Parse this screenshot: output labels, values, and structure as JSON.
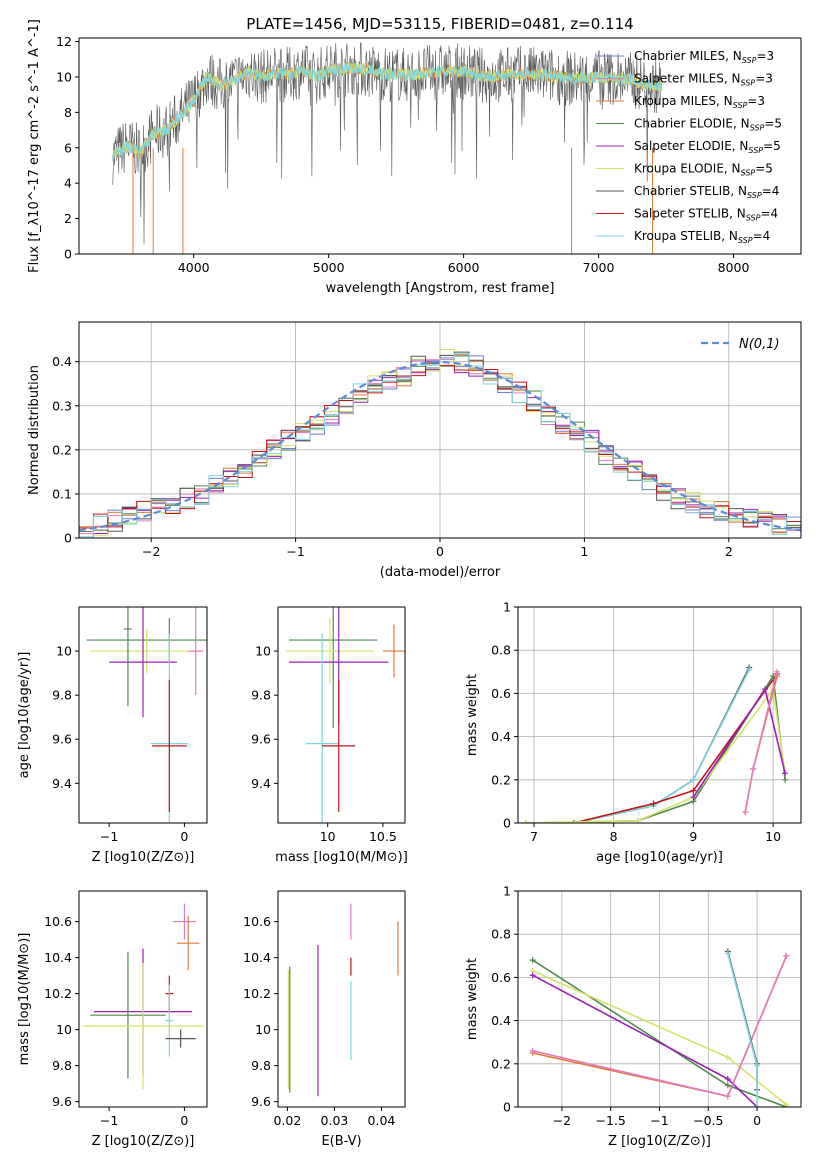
{
  "figure_title": "PLATE=1456, MJD=53115, FIBERID=0481, z=0.114",
  "colors": {
    "chabrier_miles": "#6a7fd4",
    "salpeter_miles": "#e27ac0",
    "kroupa_miles": "#e07b39",
    "chabrier_elodie": "#4f8a4f",
    "salpeter_elodie": "#9b1fb5",
    "kroupa_elodie": "#d4e36a",
    "chabrier_stelib": "#555555",
    "salpeter_stelib": "#c0141a",
    "kroupa_stelib": "#7fd6dc",
    "normal": "#5b8bd6"
  },
  "chart_data": [
    {
      "id": "spectrum",
      "type": "line",
      "xlabel": "wavelength [Angstrom, rest frame]",
      "ylabel": "Flux [f_λ10^-17 erg cm^-2 s^-1 A^-1]",
      "xlim": [
        3150,
        8500
      ],
      "ylim": [
        0,
        12.2
      ],
      "xticks": [
        4000,
        5000,
        6000,
        7000,
        8000
      ],
      "yticks": [
        0,
        2,
        4,
        6,
        8,
        10,
        12
      ],
      "x": [
        3400,
        3500,
        3550,
        3600,
        3700,
        3800,
        3900,
        4000,
        4100,
        4200,
        4300,
        4400,
        4500,
        4600,
        4700,
        4800,
        4900,
        5000,
        5200,
        5400,
        5600,
        5800,
        6000,
        6200,
        6400,
        6600,
        6800,
        7000,
        7200,
        7400
      ],
      "y": [
        5.5,
        6.1,
        6.0,
        5.7,
        6.8,
        7.0,
        7.8,
        8.7,
        10.0,
        9.5,
        9.8,
        10.3,
        10.0,
        10.2,
        10.1,
        10.4,
        10.0,
        10.4,
        10.5,
        10.2,
        10.1,
        10.3,
        10.3,
        10.0,
        10.2,
        10.1,
        9.9,
        10.0,
        9.9,
        9.5
      ],
      "data_x_max": 7470,
      "legend_position": "upper-right",
      "legend": [
        {
          "label": "Chabrier MILES, N",
          "sub": "SSP",
          "tail": "=3",
          "color_key": "chabrier_miles"
        },
        {
          "label": "Salpeter MILES, N",
          "sub": "SSP",
          "tail": "=3",
          "color_key": "salpeter_miles"
        },
        {
          "label": "Kroupa MILES, N",
          "sub": "SSP",
          "tail": "=3",
          "color_key": "kroupa_miles"
        },
        {
          "label": "Chabrier ELODIE, N",
          "sub": "SSP",
          "tail": "=5",
          "color_key": "chabrier_elodie"
        },
        {
          "label": "Salpeter ELODIE, N",
          "sub": "SSP",
          "tail": "=5",
          "color_key": "salpeter_elodie"
        },
        {
          "label": "Kroupa ELODIE, N",
          "sub": "SSP",
          "tail": "=5",
          "color_key": "kroupa_elodie"
        },
        {
          "label": "Chabrier STELIB, N",
          "sub": "SSP",
          "tail": "=4",
          "color_key": "chabrier_stelib"
        },
        {
          "label": "Salpeter STELIB, N",
          "sub": "SSP",
          "tail": "=4",
          "color_key": "salpeter_stelib"
        },
        {
          "label": "Kroupa STELIB, N",
          "sub": "SSP",
          "tail": "=4",
          "color_key": "kroupa_stelib"
        }
      ],
      "grid": false
    },
    {
      "id": "residuals",
      "type": "step-histogram",
      "xlabel": "(data-model)/error",
      "ylabel": "Normed distribution",
      "xlim": [
        -2.5,
        2.5
      ],
      "ylim": [
        0,
        0.49
      ],
      "xticks": [
        -2,
        -1,
        0,
        1,
        2
      ],
      "yticks": [
        0.0,
        0.1,
        0.2,
        0.3,
        0.4
      ],
      "bin_width": 0.1,
      "bins_start": -2.5,
      "histogram": [
        0.02,
        0.03,
        0.04,
        0.05,
        0.06,
        0.07,
        0.08,
        0.09,
        0.1,
        0.12,
        0.14,
        0.16,
        0.18,
        0.2,
        0.22,
        0.24,
        0.26,
        0.28,
        0.3,
        0.33,
        0.35,
        0.36,
        0.37,
        0.39,
        0.4,
        0.41,
        0.4,
        0.39,
        0.37,
        0.35,
        0.33,
        0.31,
        0.28,
        0.26,
        0.24,
        0.22,
        0.19,
        0.17,
        0.15,
        0.13,
        0.11,
        0.09,
        0.08,
        0.07,
        0.06,
        0.05,
        0.04,
        0.04,
        0.03,
        0.03
      ],
      "normal_label": "N(0,1)",
      "legend_position": "upper-right",
      "grid": true
    },
    {
      "id": "age_vs_Z",
      "type": "errorbar",
      "xlabel": "Z [log10(Z/Z⊙)]",
      "ylabel": "age  [log10(age/yr)]",
      "xlim": [
        -1.4,
        0.3
      ],
      "ylim": [
        9.22,
        10.2
      ],
      "xticks": [
        -1,
        0
      ],
      "yticks": [
        9.4,
        9.6,
        9.8,
        10.0
      ],
      "points": [
        {
          "x": -0.2,
          "y": 10.05,
          "xerr": 1.1,
          "yerr": 0.1,
          "color_key": "chabrier_elodie"
        },
        {
          "x": -0.5,
          "y": 10.0,
          "xerr": 0.75,
          "yerr": 0.1,
          "color_key": "kroupa_elodie"
        },
        {
          "x": -0.55,
          "y": 9.95,
          "xerr": 0.45,
          "yerr": 0.25,
          "color_key": "salpeter_elodie"
        },
        {
          "x": -0.75,
          "y": 10.1,
          "xerr": 0.05,
          "yerr": 0.35,
          "color_key": "chabrier_elodie"
        },
        {
          "x": 0.15,
          "y": 10.0,
          "xerr": 0.1,
          "yerr": 0.2,
          "color_key": "salpeter_miles"
        },
        {
          "x": -0.2,
          "y": 9.58,
          "xerr": 0.25,
          "yerr": 0.5,
          "color_key": "kroupa_stelib"
        },
        {
          "x": -0.2,
          "y": 9.57,
          "xerr": 0.23,
          "yerr": 0.3,
          "color_key": "salpeter_stelib"
        }
      ]
    },
    {
      "id": "age_vs_mass",
      "type": "errorbar",
      "xlabel": "mass [log10(M/M⊙)]",
      "ylabel": "",
      "xlim": [
        9.55,
        10.7
      ],
      "ylim": [
        9.22,
        10.2
      ],
      "xticks": [
        10.0,
        10.5
      ],
      "yticks": [
        9.4,
        9.6,
        9.8,
        10.0
      ],
      "points": [
        {
          "x": 10.05,
          "y": 10.05,
          "xerr": 0.4,
          "yerr": 0.4,
          "color_key": "chabrier_elodie"
        },
        {
          "x": 10.02,
          "y": 10.0,
          "xerr": 0.4,
          "yerr": 0.15,
          "color_key": "kroupa_elodie"
        },
        {
          "x": 10.1,
          "y": 9.95,
          "xerr": 0.45,
          "yerr": 0.28,
          "color_key": "salpeter_elodie"
        },
        {
          "x": 10.6,
          "y": 10.0,
          "xerr": 0.1,
          "yerr": 0.12,
          "color_key": "kroupa_miles"
        },
        {
          "x": 9.95,
          "y": 9.58,
          "xerr": 0.15,
          "yerr": 0.5,
          "color_key": "kroupa_stelib"
        },
        {
          "x": 10.1,
          "y": 9.57,
          "xerr": 0.15,
          "yerr": 0.3,
          "color_key": "salpeter_stelib"
        }
      ]
    },
    {
      "id": "mass_weight_vs_age",
      "type": "line",
      "xlabel": "age  [log10(age/yr)]",
      "ylabel": "mass weight",
      "xlim": [
        6.8,
        10.35
      ],
      "ylim": [
        0,
        1.0
      ],
      "xticks": [
        7,
        8,
        9,
        10
      ],
      "yticks": [
        0.0,
        0.2,
        0.4,
        0.6,
        0.8,
        1.0
      ],
      "series": [
        {
          "color_key": "chabrier_stelib",
          "x": [
            7.5,
            8.5,
            9.0,
            9.7
          ],
          "y": [
            0.0,
            0.08,
            0.2,
            0.72
          ]
        },
        {
          "color_key": "kroupa_stelib",
          "x": [
            7.5,
            8.5,
            9.0,
            9.7
          ],
          "y": [
            0.0,
            0.08,
            0.2,
            0.71
          ]
        },
        {
          "color_key": "salpeter_stelib",
          "x": [
            7.5,
            8.5,
            9.0,
            10.05
          ],
          "y": [
            0.0,
            0.09,
            0.15,
            0.69
          ]
        },
        {
          "color_key": "chabrier_elodie",
          "x": [
            6.9,
            8.3,
            9.0,
            10.0,
            10.15
          ],
          "y": [
            0.0,
            0.01,
            0.1,
            0.68,
            0.2
          ]
        },
        {
          "color_key": "kroupa_elodie",
          "x": [
            6.9,
            8.3,
            9.0,
            10.0,
            10.15
          ],
          "y": [
            0.0,
            0.01,
            0.12,
            0.62,
            0.23
          ]
        },
        {
          "color_key": "salpeter_elodie",
          "x": [
            9.0,
            9.9,
            10.15
          ],
          "y": [
            0.12,
            0.62,
            0.23
          ]
        },
        {
          "color_key": "kroupa_miles",
          "x": [
            9.65,
            9.75,
            10.05
          ],
          "y": [
            0.05,
            0.25,
            0.68
          ]
        },
        {
          "color_key": "salpeter_miles",
          "x": [
            9.65,
            9.75,
            10.05
          ],
          "y": [
            0.05,
            0.25,
            0.7
          ]
        }
      ],
      "grid": true
    },
    {
      "id": "mass_vs_Z",
      "type": "errorbar",
      "xlabel": "Z [log10(Z/Z⊙)]",
      "ylabel": "mass [log10(M/M⊙)]",
      "xlim": [
        -1.4,
        0.3
      ],
      "ylim": [
        9.57,
        10.77
      ],
      "xticks": [
        -1,
        0
      ],
      "yticks": [
        9.6,
        9.8,
        10.0,
        10.2,
        10.4,
        10.6
      ],
      "points": [
        {
          "x": 0.0,
          "y": 10.6,
          "xerr": 0.15,
          "yerr": 0.1,
          "color_key": "salpeter_miles"
        },
        {
          "x": 0.05,
          "y": 10.48,
          "xerr": 0.15,
          "yerr": 0.15,
          "color_key": "kroupa_miles"
        },
        {
          "x": -0.2,
          "y": 10.2,
          "xerr": 0.05,
          "yerr": 0.1,
          "color_key": "salpeter_stelib"
        },
        {
          "x": -0.55,
          "y": 10.1,
          "xerr": 0.65,
          "yerr": 0.35,
          "color_key": "salpeter_elodie"
        },
        {
          "x": -0.75,
          "y": 10.08,
          "xerr": 0.5,
          "yerr": 0.35,
          "color_key": "chabrier_elodie"
        },
        {
          "x": -0.55,
          "y": 10.02,
          "xerr": 0.8,
          "yerr": 0.35,
          "color_key": "kroupa_elodie"
        },
        {
          "x": -0.2,
          "y": 10.05,
          "xerr": 0.05,
          "yerr": 0.2,
          "color_key": "kroupa_stelib"
        },
        {
          "x": -0.05,
          "y": 9.95,
          "xerr": 0.2,
          "yerr": 0.05,
          "color_key": "chabrier_stelib"
        }
      ]
    },
    {
      "id": "mass_vs_ebv",
      "type": "errorbar",
      "xlabel": "E(B-V)",
      "ylabel": "",
      "xlim": [
        0.018,
        0.045
      ],
      "ylim": [
        9.57,
        10.77
      ],
      "xticks": [
        0.02,
        0.03,
        0.04
      ],
      "yticks": [
        9.6,
        9.8,
        10.0,
        10.2,
        10.4,
        10.6
      ],
      "points": [
        {
          "x": 0.0202,
          "y": 10.0,
          "xerr": 0,
          "yerr": 0.33,
          "color_key": "kroupa_elodie"
        },
        {
          "x": 0.0205,
          "y": 10.0,
          "xerr": 0,
          "yerr": 0.35,
          "color_key": "chabrier_elodie"
        },
        {
          "x": 0.0265,
          "y": 10.05,
          "xerr": 0,
          "yerr": 0.42,
          "color_key": "salpeter_elodie"
        },
        {
          "x": 0.0335,
          "y": 10.05,
          "xerr": 0,
          "yerr": 0.22,
          "color_key": "kroupa_stelib"
        },
        {
          "x": 0.0335,
          "y": 10.6,
          "xerr": 0,
          "yerr": 0.1,
          "color_key": "salpeter_miles"
        },
        {
          "x": 0.0335,
          "y": 10.35,
          "xerr": 0,
          "yerr": 0.05,
          "color_key": "salpeter_stelib"
        },
        {
          "x": 0.0435,
          "y": 10.45,
          "xerr": 0,
          "yerr": 0.15,
          "color_key": "kroupa_miles"
        }
      ]
    },
    {
      "id": "mass_weight_vs_Z",
      "type": "line",
      "xlabel": "Z [log10(Z/Z⊙)]",
      "ylabel": "mass weight",
      "xlim": [
        -2.45,
        0.45
      ],
      "ylim": [
        0,
        1.0
      ],
      "xticks": [
        -2.0,
        -1.5,
        -1.0,
        -0.5,
        0.0
      ],
      "yticks": [
        0.0,
        0.2,
        0.4,
        0.6,
        0.8,
        1.0
      ],
      "series": [
        {
          "color_key": "chabrier_elodie",
          "x": [
            -2.3,
            -0.3,
            0.3
          ],
          "y": [
            0.68,
            0.1,
            0.0
          ]
        },
        {
          "color_key": "kroupa_elodie",
          "x": [
            -2.3,
            -0.3,
            0.3
          ],
          "y": [
            0.63,
            0.23,
            0.01
          ]
        },
        {
          "color_key": "salpeter_elodie",
          "x": [
            -2.3,
            -0.3,
            0.0
          ],
          "y": [
            0.61,
            0.13,
            0.0
          ]
        },
        {
          "color_key": "kroupa_miles",
          "x": [
            -2.3,
            -0.3,
            0.3
          ],
          "y": [
            0.25,
            0.05,
            0.7
          ]
        },
        {
          "color_key": "salpeter_miles",
          "x": [
            -2.3,
            -0.3,
            0.3
          ],
          "y": [
            0.26,
            0.05,
            0.7
          ]
        },
        {
          "color_key": "chabrier_stelib",
          "x": [
            -0.3,
            0.0,
            0.0
          ],
          "y": [
            0.72,
            0.2,
            0.08
          ]
        },
        {
          "color_key": "kroupa_stelib",
          "x": [
            -0.3,
            0.0,
            0.0
          ],
          "y": [
            0.71,
            0.19,
            0.0
          ]
        }
      ],
      "grid": true
    }
  ]
}
